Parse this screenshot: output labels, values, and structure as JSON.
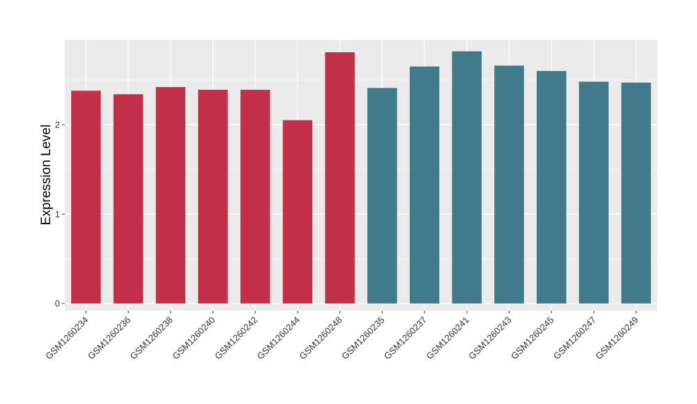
{
  "chart_data": {
    "type": "bar",
    "ylabel": "Expression Level",
    "xlabel": "",
    "ylim": [
      -0.08,
      2.95
    ],
    "yticks": [
      0,
      1,
      2
    ],
    "grid": true,
    "categories": [
      "GSM1260234",
      "GSM1260236",
      "GSM1260238",
      "GSM1260240",
      "GSM1260242",
      "GSM1260244",
      "GSM1260248",
      "GSM1260235",
      "GSM1260237",
      "GSM1260241",
      "GSM1260243",
      "GSM1260245",
      "GSM1260247",
      "GSM1260249"
    ],
    "values": [
      2.38,
      2.34,
      2.42,
      2.39,
      2.39,
      2.05,
      2.81,
      2.41,
      2.65,
      2.82,
      2.66,
      2.6,
      2.48,
      2.47
    ],
    "colors": [
      "#c3304a",
      "#c3304a",
      "#c3304a",
      "#c3304a",
      "#c3304a",
      "#c3304a",
      "#c3304a",
      "#427a8a",
      "#427a8a",
      "#427a8a",
      "#427a8a",
      "#427a8a",
      "#427a8a",
      "#427a8a"
    ],
    "panel_color": "#ebebeb",
    "grid_color": "#ffffff"
  }
}
